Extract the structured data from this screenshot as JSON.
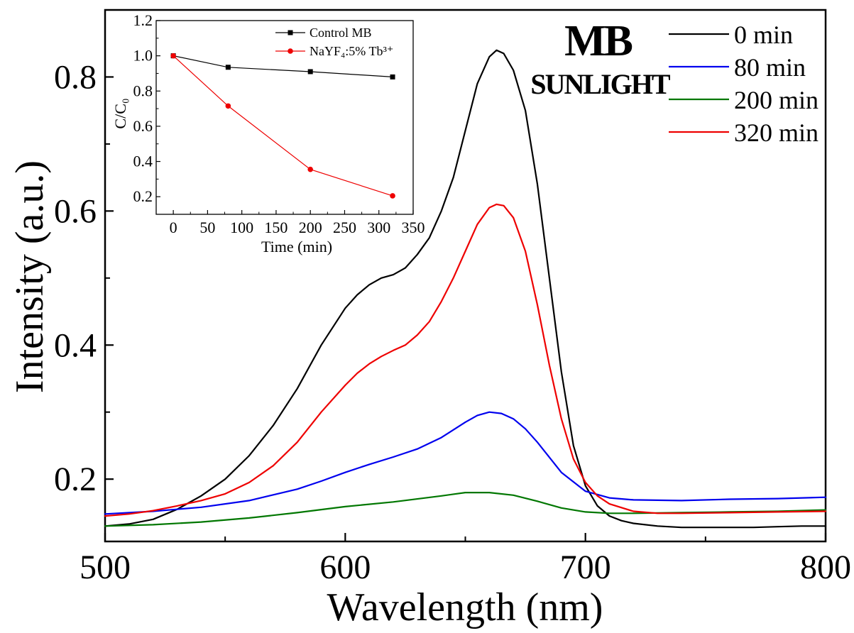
{
  "chart_data": [
    {
      "id": "main",
      "type": "line",
      "title": "MB",
      "subtitle": "SUNLIGHT",
      "xlabel": "Wavelength (nm)",
      "ylabel": "Intensity (a.u.)",
      "xlim": [
        500,
        800
      ],
      "ylim": [
        0.107,
        0.9
      ],
      "xticks": [
        500,
        600,
        700,
        800
      ],
      "yticks": [
        0.2,
        0.4,
        0.6,
        0.8
      ],
      "xtick_labels": [
        "500",
        "600",
        "700",
        "800"
      ],
      "ytick_labels": [
        "0.2",
        "0.4",
        "0.6",
        "0.8"
      ],
      "grid": false,
      "legend": "top-right",
      "series": [
        {
          "name": "0 min",
          "color": "#000000",
          "x": [
            500,
            510,
            520,
            530,
            540,
            550,
            560,
            570,
            580,
            590,
            600,
            605,
            610,
            615,
            620,
            625,
            630,
            635,
            640,
            645,
            650,
            655,
            660,
            663,
            666,
            670,
            675,
            680,
            685,
            690,
            695,
            700,
            705,
            710,
            715,
            720,
            730,
            740,
            750,
            760,
            770,
            780,
            790,
            800
          ],
          "y": [
            0.13,
            0.133,
            0.14,
            0.155,
            0.175,
            0.2,
            0.235,
            0.28,
            0.335,
            0.4,
            0.455,
            0.475,
            0.49,
            0.5,
            0.505,
            0.515,
            0.535,
            0.56,
            0.6,
            0.65,
            0.72,
            0.79,
            0.83,
            0.84,
            0.835,
            0.81,
            0.75,
            0.64,
            0.5,
            0.36,
            0.25,
            0.19,
            0.16,
            0.145,
            0.138,
            0.134,
            0.13,
            0.128,
            0.128,
            0.128,
            0.128,
            0.129,
            0.13,
            0.13
          ]
        },
        {
          "name": "80 min",
          "color": "#0000ee",
          "x": [
            500,
            520,
            540,
            560,
            580,
            590,
            600,
            610,
            620,
            630,
            640,
            650,
            655,
            660,
            665,
            670,
            675,
            680,
            690,
            700,
            710,
            720,
            740,
            760,
            780,
            800
          ],
          "y": [
            0.148,
            0.152,
            0.158,
            0.168,
            0.185,
            0.197,
            0.21,
            0.222,
            0.233,
            0.245,
            0.262,
            0.285,
            0.295,
            0.3,
            0.298,
            0.29,
            0.275,
            0.255,
            0.21,
            0.182,
            0.172,
            0.169,
            0.168,
            0.17,
            0.171,
            0.173
          ]
        },
        {
          "name": "200 min",
          "color": "#007700",
          "x": [
            500,
            520,
            540,
            560,
            580,
            600,
            620,
            640,
            650,
            660,
            670,
            680,
            690,
            700,
            710,
            720,
            740,
            760,
            780,
            800
          ],
          "y": [
            0.13,
            0.132,
            0.136,
            0.142,
            0.15,
            0.159,
            0.166,
            0.175,
            0.18,
            0.18,
            0.176,
            0.167,
            0.157,
            0.151,
            0.149,
            0.149,
            0.15,
            0.151,
            0.152,
            0.154
          ]
        },
        {
          "name": "320 min",
          "color": "#ee0000",
          "x": [
            500,
            510,
            520,
            530,
            540,
            550,
            560,
            570,
            580,
            590,
            600,
            605,
            610,
            615,
            620,
            625,
            630,
            635,
            640,
            645,
            650,
            655,
            660,
            663,
            666,
            670,
            675,
            680,
            685,
            690,
            695,
            700,
            705,
            710,
            720,
            730,
            740,
            760,
            780,
            800
          ],
          "y": [
            0.145,
            0.148,
            0.153,
            0.16,
            0.168,
            0.178,
            0.195,
            0.22,
            0.255,
            0.3,
            0.34,
            0.358,
            0.372,
            0.383,
            0.392,
            0.4,
            0.415,
            0.435,
            0.465,
            0.5,
            0.54,
            0.58,
            0.605,
            0.61,
            0.608,
            0.59,
            0.54,
            0.46,
            0.37,
            0.29,
            0.23,
            0.195,
            0.175,
            0.163,
            0.152,
            0.149,
            0.149,
            0.15,
            0.151,
            0.152
          ]
        }
      ]
    },
    {
      "id": "inset",
      "type": "line",
      "xlabel": "Time (min)",
      "ylabel": "C/C₀",
      "xlim": [
        -25,
        350
      ],
      "ylim": [
        0.1,
        1.2
      ],
      "xticks": [
        0,
        50,
        100,
        150,
        200,
        250,
        300,
        350
      ],
      "yticks": [
        0.2,
        0.4,
        0.6,
        0.8,
        1.0,
        1.2
      ],
      "xtick_labels": [
        "0",
        "50",
        "100",
        "150",
        "200",
        "250",
        "300",
        "350"
      ],
      "ytick_labels": [
        "0.2",
        "0.4",
        "0.6",
        "0.8",
        "1.0",
        "1.2"
      ],
      "grid": false,
      "legend": "top-right",
      "series": [
        {
          "name": "Control MB",
          "color": "#000000",
          "marker": "square",
          "x": [
            0,
            80,
            200,
            320
          ],
          "y": [
            1.0,
            0.935,
            0.91,
            0.88
          ]
        },
        {
          "name": "NaYF₄:5% Tb³⁺",
          "color": "#ee0000",
          "marker": "circle",
          "x": [
            0,
            80,
            200,
            320
          ],
          "y": [
            1.0,
            0.715,
            0.355,
            0.205
          ]
        }
      ]
    }
  ]
}
